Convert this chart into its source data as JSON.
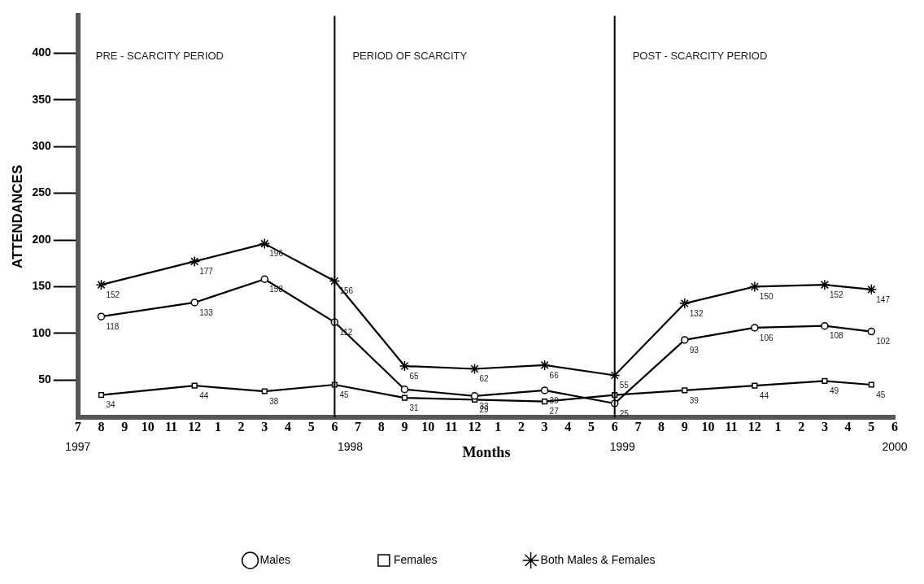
{
  "chart_data": {
    "type": "line",
    "xlabel": "Months",
    "ylabel": "ATTENDANCES",
    "x": [
      "1997-08",
      "1997-12",
      "1998-03",
      "1998-06",
      "1998-09",
      "1998-12",
      "1999-03",
      "1999-06",
      "1999-09",
      "1999-12",
      "2000-03",
      "2000-05"
    ],
    "series": [
      {
        "name": "Males",
        "color": "#000000",
        "marker": "circle",
        "values": [
          118,
          133,
          158,
          112,
          40,
          33,
          39,
          25,
          93,
          106,
          108,
          102
        ],
        "value_labels": [
          "118",
          "133",
          "158",
          "112",
          null,
          "33",
          "39",
          "25",
          "93",
          "106",
          "108",
          "102"
        ]
      },
      {
        "name": "Females",
        "color": "#000000",
        "marker": "square",
        "values": [
          34,
          44,
          38,
          45,
          31,
          29,
          27,
          34,
          39,
          44,
          49,
          45
        ],
        "value_labels": [
          "34",
          "44",
          "38",
          "45",
          "31",
          "29",
          "27",
          null,
          "39",
          "44",
          "49",
          "45"
        ]
      },
      {
        "name": "Both Males & Females",
        "color": "#000000",
        "marker": "cross",
        "values": [
          152,
          177,
          196,
          156,
          65,
          62,
          66,
          55,
          132,
          150,
          152,
          147
        ],
        "value_labels": [
          "152",
          "177",
          "196",
          "156",
          "65",
          "62",
          "66",
          "55",
          "132",
          "150",
          "152",
          "147"
        ]
      }
    ],
    "ylim": [
      10,
      440
    ],
    "yticks": [
      50,
      100,
      150,
      200,
      250,
      300,
      350,
      400
    ],
    "xlim": [
      "1997-07",
      "2000-06"
    ],
    "xticks": [
      {
        "value": "1997-07",
        "label": "7"
      },
      {
        "value": "1997-08",
        "label": "8"
      },
      {
        "value": "1997-09",
        "label": "9"
      },
      {
        "value": "1997-10",
        "label": "10"
      },
      {
        "value": "1997-11",
        "label": "11"
      },
      {
        "value": "1997-12",
        "label": "12"
      },
      {
        "value": "1998-01",
        "label": "1"
      },
      {
        "value": "1998-02",
        "label": "2"
      },
      {
        "value": "1998-03",
        "label": "3"
      },
      {
        "value": "1998-04",
        "label": "4"
      },
      {
        "value": "1998-05",
        "label": "5"
      },
      {
        "value": "1998-06",
        "label": "6"
      },
      {
        "value": "1998-07",
        "label": "7"
      },
      {
        "value": "1998-08",
        "label": "8"
      },
      {
        "value": "1998-09",
        "label": "9"
      },
      {
        "value": "1998-10",
        "label": "10"
      },
      {
        "value": "1998-11",
        "label": "11"
      },
      {
        "value": "1998-12",
        "label": "12"
      },
      {
        "value": "1999-01",
        "label": "1"
      },
      {
        "value": "1999-02",
        "label": "2"
      },
      {
        "value": "1999-03",
        "label": "3"
      },
      {
        "value": "1999-04",
        "label": "4"
      },
      {
        "value": "1999-05",
        "label": "5"
      },
      {
        "value": "1999-06",
        "label": "6"
      },
      {
        "value": "1999-07",
        "label": "7"
      },
      {
        "value": "1999-08",
        "label": "8"
      },
      {
        "value": "1999-09",
        "label": "9"
      },
      {
        "value": "1999-10",
        "label": "10"
      },
      {
        "value": "1999-11",
        "label": "11"
      },
      {
        "value": "1999-12",
        "label": "12"
      },
      {
        "value": "2000-01",
        "label": "1"
      },
      {
        "value": "2000-02",
        "label": "2"
      },
      {
        "value": "2000-03",
        "label": "3"
      },
      {
        "value": "2000-04",
        "label": "4"
      },
      {
        "value": "2000-05",
        "label": "5"
      },
      {
        "value": "2000-06",
        "label": "6"
      }
    ],
    "ref_lines": [
      {
        "axis": "x",
        "value": "1998-06"
      },
      {
        "axis": "x",
        "value": "1999-06"
      }
    ],
    "annotations": [
      "PRE - SCARCITY PERIOD",
      "PERIOD OF SCARCITY",
      "POST - SCARCITY PERIOD",
      "1997",
      "1998",
      "1999",
      "2000"
    ],
    "grid": false,
    "legend": "bottom",
    "line_style": "solid"
  }
}
